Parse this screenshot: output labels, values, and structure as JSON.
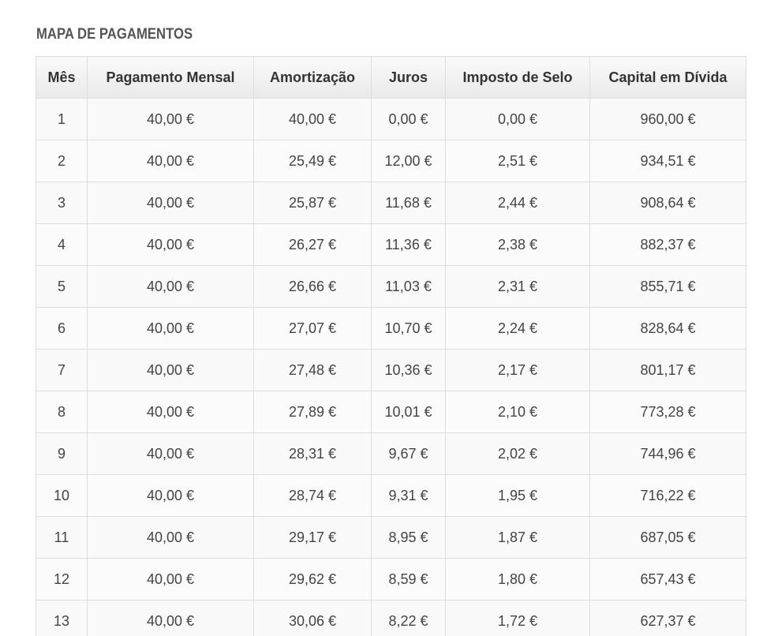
{
  "title": "MAPA DE PAGAMENTOS",
  "table": {
    "headers": [
      "Mês",
      "Pagamento Mensal",
      "Amortização",
      "Juros",
      "Imposto de Selo",
      "Capital em Dívida"
    ],
    "rows": [
      [
        "1",
        "40,00 €",
        "40,00 €",
        "0,00 €",
        "0,00 €",
        "960,00 €"
      ],
      [
        "2",
        "40,00 €",
        "25,49 €",
        "12,00 €",
        "2,51 €",
        "934,51 €"
      ],
      [
        "3",
        "40,00 €",
        "25,87 €",
        "11,68 €",
        "2,44 €",
        "908,64 €"
      ],
      [
        "4",
        "40,00 €",
        "26,27 €",
        "11,36 €",
        "2,38 €",
        "882,37 €"
      ],
      [
        "5",
        "40,00 €",
        "26,66 €",
        "11,03 €",
        "2,31 €",
        "855,71 €"
      ],
      [
        "6",
        "40,00 €",
        "27,07 €",
        "10,70 €",
        "2,24 €",
        "828,64 €"
      ],
      [
        "7",
        "40,00 €",
        "27,48 €",
        "10,36 €",
        "2,17 €",
        "801,17 €"
      ],
      [
        "8",
        "40,00 €",
        "27,89 €",
        "10,01 €",
        "2,10 €",
        "773,28 €"
      ],
      [
        "9",
        "40,00 €",
        "28,31 €",
        "9,67 €",
        "2,02 €",
        "744,96 €"
      ],
      [
        "10",
        "40,00 €",
        "28,74 €",
        "9,31 €",
        "1,95 €",
        "716,22 €"
      ],
      [
        "11",
        "40,00 €",
        "29,17 €",
        "8,95 €",
        "1,87 €",
        "687,05 €"
      ],
      [
        "12",
        "40,00 €",
        "29,62 €",
        "8,59 €",
        "1,80 €",
        "657,43 €"
      ],
      [
        "13",
        "40,00 €",
        "30,06 €",
        "8,22 €",
        "1,72 €",
        "627,37 €"
      ]
    ]
  }
}
